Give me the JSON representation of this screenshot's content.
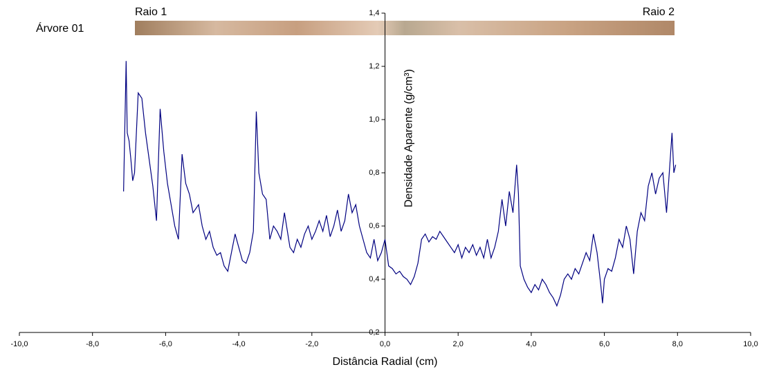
{
  "chart_data": {
    "type": "line",
    "annotations": [
      "Árvore 01",
      "Raio 1",
      "Raio 2"
    ],
    "x_label": "Distância Radial (cm)",
    "y_label": "Densidade Aparente (g/cm³)",
    "x": [
      -7.15,
      -7.08,
      -7.05,
      -7.0,
      -6.95,
      -6.9,
      -6.85,
      -6.75,
      -6.65,
      -6.55,
      -6.45,
      -6.35,
      -6.25,
      -6.15,
      -6.05,
      -5.95,
      -5.85,
      -5.75,
      -5.65,
      -5.55,
      -5.45,
      -5.35,
      -5.25,
      -5.1,
      -5.0,
      -4.9,
      -4.8,
      -4.7,
      -4.6,
      -4.5,
      -4.4,
      -4.3,
      -4.2,
      -4.1,
      -4.0,
      -3.9,
      -3.8,
      -3.7,
      -3.6,
      -3.52,
      -3.45,
      -3.35,
      -3.25,
      -3.15,
      -3.05,
      -2.95,
      -2.85,
      -2.75,
      -2.6,
      -2.5,
      -2.4,
      -2.3,
      -2.2,
      -2.1,
      -2.0,
      -1.9,
      -1.8,
      -1.7,
      -1.6,
      -1.5,
      -1.4,
      -1.3,
      -1.2,
      -1.1,
      -1.0,
      -0.9,
      -0.8,
      -0.7,
      -0.6,
      -0.5,
      -0.4,
      -0.3,
      -0.2,
      -0.1,
      0.0,
      0.1,
      0.2,
      0.3,
      0.4,
      0.5,
      0.6,
      0.7,
      0.8,
      0.9,
      1.0,
      1.1,
      1.2,
      1.3,
      1.4,
      1.5,
      1.6,
      1.7,
      1.8,
      1.9,
      2.0,
      2.1,
      2.2,
      2.3,
      2.4,
      2.5,
      2.6,
      2.7,
      2.8,
      2.9,
      3.0,
      3.1,
      3.2,
      3.3,
      3.4,
      3.5,
      3.6,
      3.65,
      3.7,
      3.8,
      3.9,
      4.0,
      4.1,
      4.2,
      4.3,
      4.4,
      4.5,
      4.6,
      4.7,
      4.8,
      4.9,
      5.0,
      5.1,
      5.2,
      5.3,
      5.4,
      5.5,
      5.6,
      5.7,
      5.8,
      5.9,
      5.95,
      6.0,
      6.1,
      6.2,
      6.3,
      6.4,
      6.5,
      6.6,
      6.7,
      6.8,
      6.9,
      7.0,
      7.1,
      7.2,
      7.3,
      7.4,
      7.5,
      7.6,
      7.7,
      7.8,
      7.85,
      7.9,
      7.95
    ],
    "series": [
      {
        "color": "#000080",
        "values": [
          0.73,
          1.22,
          0.95,
          0.92,
          0.85,
          0.77,
          0.8,
          1.1,
          1.08,
          0.95,
          0.85,
          0.75,
          0.62,
          1.04,
          0.88,
          0.76,
          0.68,
          0.6,
          0.55,
          0.87,
          0.76,
          0.72,
          0.65,
          0.68,
          0.6,
          0.55,
          0.58,
          0.52,
          0.49,
          0.5,
          0.45,
          0.43,
          0.5,
          0.57,
          0.52,
          0.47,
          0.46,
          0.5,
          0.58,
          1.03,
          0.8,
          0.72,
          0.7,
          0.55,
          0.6,
          0.58,
          0.55,
          0.65,
          0.52,
          0.5,
          0.55,
          0.52,
          0.57,
          0.6,
          0.55,
          0.58,
          0.62,
          0.58,
          0.64,
          0.56,
          0.6,
          0.66,
          0.58,
          0.62,
          0.72,
          0.65,
          0.68,
          0.6,
          0.55,
          0.5,
          0.48,
          0.55,
          0.47,
          0.5,
          0.55,
          0.45,
          0.44,
          0.42,
          0.43,
          0.41,
          0.4,
          0.38,
          0.41,
          0.46,
          0.55,
          0.57,
          0.54,
          0.56,
          0.55,
          0.58,
          0.56,
          0.54,
          0.52,
          0.5,
          0.53,
          0.48,
          0.52,
          0.5,
          0.53,
          0.49,
          0.52,
          0.48,
          0.55,
          0.48,
          0.52,
          0.58,
          0.7,
          0.6,
          0.73,
          0.65,
          0.83,
          0.72,
          0.45,
          0.4,
          0.37,
          0.35,
          0.38,
          0.36,
          0.4,
          0.38,
          0.35,
          0.33,
          0.3,
          0.34,
          0.4,
          0.42,
          0.4,
          0.44,
          0.42,
          0.46,
          0.5,
          0.47,
          0.57,
          0.5,
          0.38,
          0.31,
          0.4,
          0.44,
          0.43,
          0.48,
          0.55,
          0.52,
          0.6,
          0.55,
          0.42,
          0.58,
          0.65,
          0.62,
          0.75,
          0.8,
          0.72,
          0.78,
          0.8,
          0.65,
          0.85,
          0.95,
          0.8,
          0.83
        ]
      }
    ],
    "xlim": [
      -10,
      10
    ],
    "xticks": [
      {
        "value": -10,
        "label": "-10,0"
      },
      {
        "value": -8,
        "label": "-8,0"
      },
      {
        "value": -6,
        "label": "-6,0"
      },
      {
        "value": -4,
        "label": "-4,0"
      },
      {
        "value": -2,
        "label": "-2,0"
      },
      {
        "value": 0,
        "label": "0,0"
      },
      {
        "value": 2,
        "label": "2,0"
      },
      {
        "value": 4,
        "label": "4,0"
      },
      {
        "value": 6,
        "label": "6,0"
      },
      {
        "value": 8,
        "label": "8,0"
      },
      {
        "value": 10,
        "label": "10,0"
      }
    ],
    "ylim": [
      0.2,
      1.4
    ],
    "yticks": [
      {
        "value": 0.2,
        "label": "0,2"
      },
      {
        "value": 0.4,
        "label": "0,4"
      },
      {
        "value": 0.6,
        "label": "0,6"
      },
      {
        "value": 0.8,
        "label": "0,8"
      },
      {
        "value": 1.0,
        "label": "1,0"
      },
      {
        "value": 1.2,
        "label": "1,2"
      },
      {
        "value": 1.4,
        "label": "1,4"
      }
    ],
    "grid": false
  }
}
